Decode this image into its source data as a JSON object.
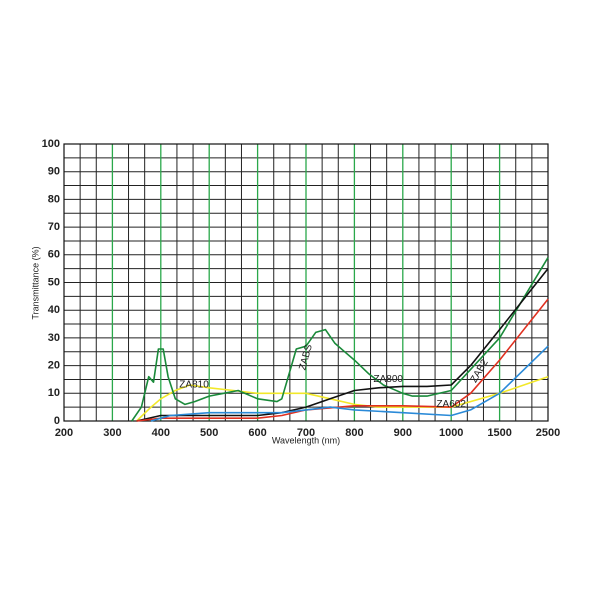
{
  "chart_data": {
    "type": "line",
    "x_label": "Wavelength (nm)",
    "y_label": "Transmittance (%)",
    "xlim": [
      200,
      2500
    ],
    "ylim": [
      0,
      100
    ],
    "xticks": [
      200,
      300,
      400,
      500,
      600,
      700,
      800,
      900,
      1000,
      1500,
      2500
    ],
    "yticks": [
      0,
      10,
      20,
      30,
      40,
      50,
      60,
      70,
      80,
      90,
      100
    ],
    "x_minor_divisions": 3,
    "y_minor_divisions": 2,
    "major_grid_color": "#2aa84a",
    "minor_grid_color": "#222222",
    "series": [
      {
        "name": "ZA810",
        "color": "#f2e829",
        "x": [
          350,
          380,
          400,
          430,
          460,
          500,
          550,
          600,
          650,
          700,
          750,
          800,
          850,
          900,
          1000,
          1500,
          2500
        ],
        "values": [
          0,
          5,
          8,
          11,
          13,
          12,
          11,
          10,
          10,
          10,
          8,
          6,
          5,
          5,
          5,
          10,
          16
        ]
      },
      {
        "name": "ZABS",
        "color": "#1a8a3a",
        "x": [
          340,
          360,
          375,
          385,
          395,
          405,
          415,
          430,
          450,
          470,
          500,
          530,
          560,
          600,
          640,
          650,
          670,
          680,
          700,
          720,
          740,
          760,
          780,
          800,
          830,
          860,
          900,
          920,
          950,
          1000,
          1500,
          2500
        ],
        "values": [
          0,
          5,
          16,
          14,
          26,
          26,
          16,
          8,
          6,
          7,
          9,
          10,
          11,
          8,
          7,
          8,
          20,
          26,
          27,
          32,
          33,
          28,
          25,
          22,
          17,
          13,
          10,
          9,
          9,
          11,
          30,
          59
        ]
      },
      {
        "name": "ZA800",
        "color": "#111111",
        "x": [
          350,
          400,
          500,
          600,
          650,
          700,
          750,
          800,
          850,
          900,
          950,
          1000,
          1200,
          1500,
          2500
        ],
        "values": [
          0,
          2,
          2,
          2,
          3,
          5,
          8,
          11,
          12,
          12.5,
          12.5,
          13,
          20,
          33,
          55
        ]
      },
      {
        "name": "ZA602",
        "color": "#e03020",
        "x": [
          350,
          400,
          600,
          650,
          700,
          800,
          900,
          1000,
          1200,
          1500,
          2500
        ],
        "values": [
          0,
          1,
          1,
          2,
          4,
          5.5,
          5.5,
          5,
          10,
          22,
          44
        ]
      },
      {
        "name": "ZAB2",
        "color": "#2a8ad8",
        "x": [
          380,
          400,
          420,
          500,
          600,
          650,
          700,
          750,
          800,
          900,
          1000,
          1200,
          1500,
          2500
        ],
        "values": [
          0,
          1,
          2,
          3,
          3,
          3,
          4,
          5,
          4,
          3,
          2,
          4,
          10,
          27
        ]
      }
    ]
  }
}
